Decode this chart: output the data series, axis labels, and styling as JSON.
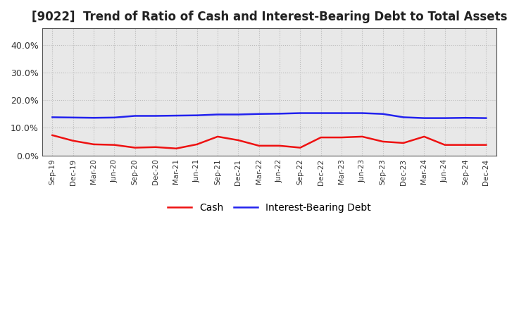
{
  "title": "[9022]  Trend of Ratio of Cash and Interest-Bearing Debt to Total Assets",
  "x_labels": [
    "Sep-19",
    "Dec-19",
    "Mar-20",
    "Jun-20",
    "Sep-20",
    "Dec-20",
    "Mar-21",
    "Jun-21",
    "Sep-21",
    "Dec-21",
    "Mar-22",
    "Jun-22",
    "Sep-22",
    "Dec-22",
    "Mar-23",
    "Jun-23",
    "Sep-23",
    "Dec-23",
    "Mar-24",
    "Jun-24",
    "Sep-24",
    "Dec-24"
  ],
  "cash": [
    0.073,
    0.053,
    0.04,
    0.038,
    0.028,
    0.03,
    0.025,
    0.04,
    0.068,
    0.055,
    0.035,
    0.035,
    0.028,
    0.065,
    0.065,
    0.068,
    0.05,
    0.045,
    0.068,
    0.038,
    0.038,
    0.038
  ],
  "interest_bearing_debt": [
    0.138,
    0.137,
    0.136,
    0.137,
    0.143,
    0.143,
    0.144,
    0.145,
    0.148,
    0.148,
    0.15,
    0.151,
    0.153,
    0.153,
    0.153,
    0.153,
    0.15,
    0.138,
    0.135,
    0.135,
    0.136,
    0.135
  ],
  "cash_color": "#EE1111",
  "debt_color": "#2222EE",
  "ylim": [
    0.0,
    0.46
  ],
  "yticks": [
    0.0,
    0.1,
    0.2,
    0.3,
    0.4
  ],
  "plot_bg_color": "#E8E8E8",
  "fig_bg_color": "#FFFFFF",
  "grid_color": "#BBBBBB",
  "title_fontsize": 12,
  "legend_cash": "Cash",
  "legend_debt": "Interest-Bearing Debt",
  "linewidth": 1.8
}
